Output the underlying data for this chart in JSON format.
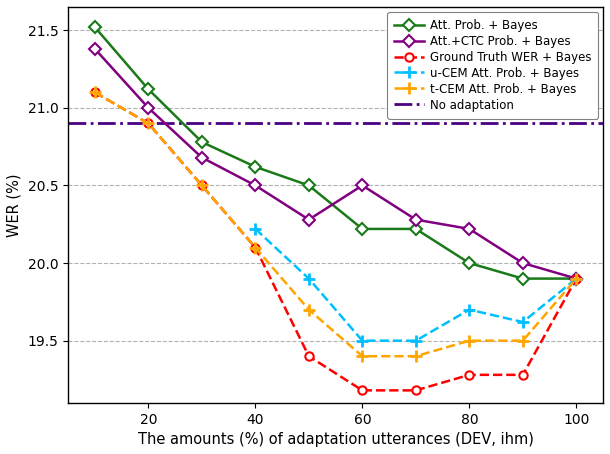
{
  "x": [
    10,
    20,
    30,
    40,
    50,
    60,
    70,
    80,
    90,
    100
  ],
  "att_prob_bayes": [
    21.52,
    21.12,
    20.78,
    20.62,
    20.5,
    20.22,
    20.22,
    20.0,
    19.9,
    19.9
  ],
  "att_ctc_prob_bayes": [
    21.38,
    21.0,
    20.68,
    20.5,
    20.28,
    20.5,
    20.28,
    20.22,
    20.0,
    19.9
  ],
  "ground_truth_wer_bayes": [
    21.1,
    20.9,
    20.5,
    20.1,
    19.4,
    19.18,
    19.18,
    19.28,
    19.28,
    19.9
  ],
  "u_cem_att_prob_bayes": [
    null,
    null,
    null,
    20.22,
    19.9,
    19.5,
    19.5,
    19.7,
    19.62,
    19.9
  ],
  "t_cem_att_prob_bayes": [
    21.1,
    20.9,
    20.5,
    20.1,
    19.7,
    19.4,
    19.4,
    19.5,
    19.5,
    19.9
  ],
  "no_adaptation": 20.9,
  "xlabel": "The amounts (%) of adaptation utterances (DEV, ihm)",
  "ylabel": "WER (%)",
  "ylim": [
    19.1,
    21.65
  ],
  "xlim": [
    5,
    105
  ],
  "legend_labels": [
    "Att. Prob. + Bayes",
    "Att.+CTC Prob. + Bayes",
    "Ground Truth WER + Bayes",
    "u-CEM Att. Prob. + Bayes",
    "t-CEM Att. Prob. + Bayes",
    "No adaptation"
  ],
  "colors": {
    "att_prob_bayes": "#1a7a1a",
    "att_ctc_prob_bayes": "#800080",
    "ground_truth_wer_bayes": "#ff0000",
    "u_cem_att_prob_bayes": "#00bfff",
    "t_cem_att_prob_bayes": "#ffa500",
    "no_adaptation": "#4b0082"
  },
  "xticks": [
    20,
    40,
    60,
    80,
    100
  ],
  "yticks": [
    19.5,
    20.0,
    20.5,
    21.0,
    21.5
  ],
  "figsize": [
    6.1,
    4.54
  ],
  "dpi": 100
}
